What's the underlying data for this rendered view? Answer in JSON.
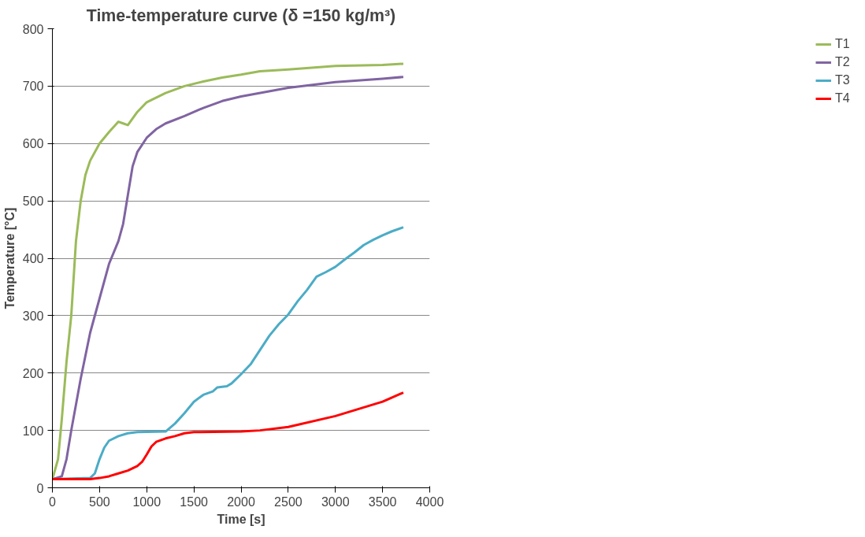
{
  "chart_data": {
    "type": "line",
    "title": "Time-temperature curve (δ =150 kg/m³)",
    "xlabel": "Time [s]",
    "ylabel": "Temperature [°C]",
    "xlim": [
      0,
      4000
    ],
    "xticks": [
      0,
      500,
      1000,
      1500,
      2000,
      2500,
      3000,
      3500,
      4000
    ],
    "ylim": [
      0,
      800
    ],
    "yticks": [
      0,
      100,
      200,
      300,
      400,
      500,
      600,
      700,
      800
    ],
    "grid": "y",
    "legend": "right",
    "marker": "none",
    "line_style": "solid",
    "series": [
      {
        "name": "T1",
        "color": "#9bbb59",
        "x": [
          0,
          60,
          100,
          150,
          200,
          250,
          300,
          350,
          400,
          500,
          600,
          700,
          750,
          800,
          900,
          1000,
          1200,
          1400,
          1600,
          1800,
          2000,
          2200,
          2500,
          3000,
          3500,
          3720
        ],
        "values": [
          15,
          50,
          120,
          220,
          300,
          430,
          500,
          545,
          570,
          600,
          620,
          638,
          635,
          632,
          655,
          672,
          688,
          700,
          708,
          715,
          720,
          726,
          729,
          735,
          737,
          739
        ]
      },
      {
        "name": "T2",
        "color": "#8064a2",
        "x": [
          0,
          100,
          150,
          200,
          300,
          400,
          500,
          600,
          700,
          750,
          800,
          850,
          900,
          1000,
          1100,
          1200,
          1400,
          1600,
          1800,
          2000,
          2500,
          3000,
          3500,
          3720
        ],
        "values": [
          15,
          20,
          50,
          100,
          190,
          270,
          330,
          390,
          430,
          460,
          510,
          560,
          585,
          610,
          625,
          635,
          648,
          662,
          674,
          682,
          697,
          707,
          713,
          716
        ]
      },
      {
        "name": "T3",
        "color": "#4bacc6",
        "x": [
          0,
          400,
          450,
          500,
          550,
          600,
          700,
          800,
          900,
          1200,
          1300,
          1400,
          1500,
          1600,
          1700,
          1750,
          1850,
          1900,
          2000,
          2100,
          2200,
          2300,
          2400,
          2500,
          2600,
          2700,
          2800,
          2900,
          3000,
          3100,
          3200,
          3300,
          3400,
          3500,
          3600,
          3720
        ],
        "values": [
          15,
          17,
          25,
          50,
          70,
          82,
          90,
          95,
          97,
          98,
          112,
          130,
          150,
          162,
          168,
          175,
          177,
          182,
          198,
          215,
          240,
          265,
          285,
          302,
          325,
          345,
          368,
          376,
          385,
          398,
          410,
          423,
          432,
          440,
          447,
          454
        ]
      },
      {
        "name": "T4",
        "color": "#ff0000",
        "x": [
          0,
          400,
          500,
          600,
          700,
          800,
          900,
          950,
          1000,
          1050,
          1100,
          1200,
          1300,
          1400,
          1500,
          2000,
          2200,
          2500,
          3000,
          3500,
          3720
        ],
        "values": [
          15,
          15,
          17,
          20,
          25,
          30,
          38,
          45,
          58,
          72,
          80,
          86,
          90,
          95,
          97,
          98,
          100,
          106,
          125,
          150,
          166
        ]
      }
    ]
  }
}
